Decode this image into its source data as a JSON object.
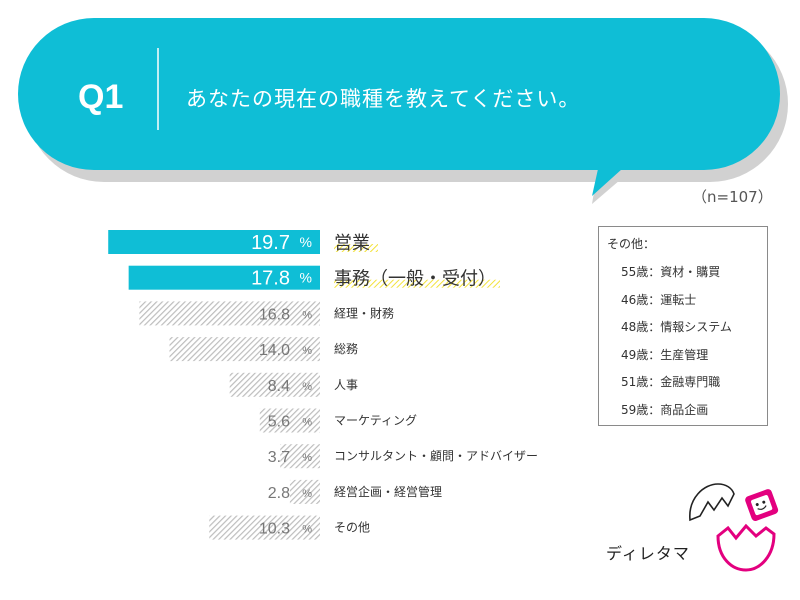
{
  "question": {
    "number": "Q1",
    "text": "あなたの現在の職種を教えてください。",
    "sample_size": "（n=107）"
  },
  "colors": {
    "accent": "#0fbed6",
    "highlight": "#f3e23a",
    "hatch": "#bdbdbd",
    "logo_pink": "#e3007f"
  },
  "chart_data": {
    "type": "bar",
    "orientation": "horizontal",
    "categories": [
      "営業",
      "事務（一般・受付）",
      "経理・財務",
      "総務",
      "人事",
      "マーケティング",
      "コンサルタント・顧問・アドバイザー",
      "経営企画・経営管理",
      "その他"
    ],
    "values": [
      19.7,
      17.8,
      16.8,
      14.0,
      8.4,
      5.6,
      3.7,
      2.8,
      10.3
    ],
    "value_labels": [
      "19.7",
      "17.8",
      "16.8",
      "14.0",
      "8.4",
      "5.6",
      "3.7",
      "2.8",
      "10.3"
    ],
    "unit": "%",
    "highlighted": [
      true,
      true,
      false,
      false,
      false,
      false,
      false,
      false,
      false
    ]
  },
  "other_box": {
    "title": "その他：",
    "items": [
      "55歳：資材・購買",
      "46歳：運転士",
      "48歳：情報システム",
      "49歳：生産管理",
      "51歳：金融専門職",
      "59歳：商品企画"
    ]
  },
  "logo": {
    "text": "ディレタマ"
  }
}
